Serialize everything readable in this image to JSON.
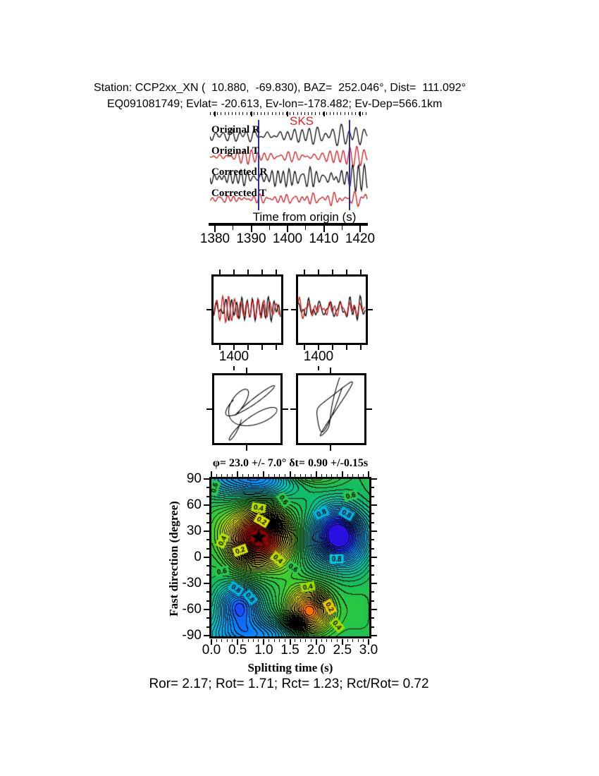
{
  "header": {
    "line1": "Station: CCP2xx_XN (  10.880,  -69.830), BAZ=  252.046°, Dist=  111.092°",
    "line2": "EQ091081749; Evlat= -20.613, Ev-lon=-178.482; Ev-Dep=566.1km"
  },
  "colors": {
    "pick_line": "#2d2db4",
    "phase_label": "#dd2222",
    "trace_black": "#000000",
    "trace_red": "#cc1111"
  },
  "waveform_section": {
    "phase_label": "SKS",
    "axis_label": "Time from origin (s)",
    "tick_times": [
      1380,
      1390,
      1400,
      1410,
      1420
    ],
    "tick_labels": [
      "1380",
      "1390",
      "1400",
      "1410",
      "1420"
    ],
    "pick_times_s": [
      1392,
      1417
    ],
    "traces": [
      {
        "label": "Original R",
        "color": "#000000",
        "seed": 11,
        "amp": 12
      },
      {
        "label": "Original T",
        "color": "#cc1111",
        "seed": 47,
        "amp": 9
      },
      {
        "label": "Corrected R",
        "color": "#000000",
        "seed": 83,
        "amp": 13
      },
      {
        "label": "Corrected T",
        "color": "#cc1111",
        "seed": 29,
        "amp": 7
      }
    ]
  },
  "zoom_section": {
    "tick_label": "1400",
    "panels": [
      {
        "name": "original-window",
        "black_seed": 5,
        "red_seed": 61
      },
      {
        "name": "corrected-window",
        "black_seed": 19,
        "red_seed": 73
      }
    ]
  },
  "particle_motion_section": {
    "panels": [
      {
        "name": "uncorrected-particle-motion",
        "seed": 101,
        "style": "elliptical"
      },
      {
        "name": "corrected-particle-motion",
        "seed": 202,
        "style": "linear",
        "angle_deg": 62
      }
    ]
  },
  "chart_data": {
    "type": "heatmap",
    "title": "φ= 23.0 +/- 7.0° δt= 0.90 +/-0.15s",
    "xlabel": "Splitting time (s)",
    "ylabel": "Fast direction (degree)",
    "xlim": [
      0,
      3
    ],
    "ylim": [
      -90,
      90
    ],
    "xtick_labels": [
      "0.0",
      "0.5",
      "1.0",
      "1.5",
      "2.0",
      "2.5",
      "3.0"
    ],
    "ytick_labels": [
      "90",
      "60",
      "30",
      "0",
      "-30",
      "-60",
      "-90"
    ],
    "x_minor_step": 0.1,
    "y_minor_step": 10,
    "grid": false,
    "best_fit": {
      "phi_deg": 23.0,
      "phi_err_deg": 7.0,
      "dt_s": 0.9,
      "dt_err_s": 0.15
    },
    "star": {
      "t": 0.9,
      "phi": 23
    },
    "contour_interval": 0.02,
    "field": {
      "base": 0.58,
      "ripple_amp": 0.012,
      "blobs": [
        {
          "t": 0.9,
          "p": 23,
          "st": 0.55,
          "sp": 30,
          "a": -0.62
        },
        {
          "t": 1.85,
          "p": -62,
          "st": 0.42,
          "sp": 26,
          "a": -0.4
        },
        {
          "t": 2.42,
          "p": 25,
          "st": 0.55,
          "sp": 34,
          "a": 0.46
        },
        {
          "t": 0.52,
          "p": -54,
          "st": 0.45,
          "sp": 25,
          "a": 0.3
        },
        {
          "t": 0.8,
          "p": 90,
          "st": 0.95,
          "sp": 22,
          "a": 0.26
        }
      ]
    },
    "colormap": [
      [
        0.0,
        "#8b0000"
      ],
      [
        0.06,
        "#cd0000"
      ],
      [
        0.14,
        "#ff4500"
      ],
      [
        0.22,
        "#ff8c00"
      ],
      [
        0.3,
        "#ffd700"
      ],
      [
        0.38,
        "#ffff00"
      ],
      [
        0.46,
        "#aadd00"
      ],
      [
        0.54,
        "#33cc33"
      ],
      [
        0.62,
        "#11bb66"
      ],
      [
        0.7,
        "#00ccbb"
      ],
      [
        0.78,
        "#00aaee"
      ],
      [
        0.86,
        "#0090ff"
      ],
      [
        0.93,
        "#2233ff"
      ],
      [
        1.0,
        "#2a10e0"
      ]
    ],
    "contour_labels": [
      {
        "text": "0.6",
        "t": 0.06,
        "p": 80,
        "rot": 75,
        "bg": "#2ec84e"
      },
      {
        "text": "0.6",
        "t": 1.38,
        "p": 66,
        "rot": -55,
        "bg": "#2ec84e"
      },
      {
        "text": "0.4",
        "t": 0.9,
        "p": 57,
        "rot": -10,
        "bg": "#b4e000"
      },
      {
        "text": "0.2",
        "t": 0.96,
        "p": 42,
        "rot": -30,
        "bg": "#d8e400"
      },
      {
        "text": "0.4",
        "t": 0.21,
        "p": 19,
        "rot": 65,
        "bg": "#b4e000"
      },
      {
        "text": "0.2",
        "t": 0.55,
        "p": 8,
        "rot": 20,
        "bg": "#d8e400"
      },
      {
        "text": "0.4",
        "t": 1.27,
        "p": -2,
        "rot": -40,
        "bg": "#b4e000"
      },
      {
        "text": "0.6",
        "t": 1.56,
        "p": -12,
        "rot": -35,
        "bg": "#2ec84e"
      },
      {
        "text": "0.6",
        "t": 0.2,
        "p": -16,
        "rot": 10,
        "bg": "#2ec84e"
      },
      {
        "text": "0.8",
        "t": 2.1,
        "p": 51,
        "rot": 25,
        "bg": "#00b4e6"
      },
      {
        "text": "0.8",
        "t": 2.58,
        "p": 50,
        "rot": -30,
        "bg": "#00b4e6"
      },
      {
        "text": "0.6",
        "t": 2.66,
        "p": 71,
        "rot": 15,
        "bg": "#2ec84e"
      },
      {
        "text": "0.8",
        "t": 2.39,
        "p": -2,
        "rot": 0,
        "bg": "#00c8e6"
      },
      {
        "text": "0.8",
        "t": 0.47,
        "p": -36,
        "rot": -35,
        "bg": "#00b4e6"
      },
      {
        "text": "0.8",
        "t": 0.74,
        "p": -46,
        "rot": -50,
        "bg": "#00b4e6"
      },
      {
        "text": "0.4",
        "t": 1.84,
        "p": -34,
        "rot": 10,
        "bg": "#a0dc00"
      },
      {
        "text": "0.2",
        "t": 2.26,
        "p": -57,
        "rot": -60,
        "bg": "#f0c800"
      },
      {
        "text": "0.4",
        "t": 2.4,
        "p": -78,
        "rot": -50,
        "bg": "#a0dc00"
      }
    ]
  },
  "footer_stats": "Ror= 2.17; Rot= 1.71; Rct= 1.23; Rct/Rot= 0.72"
}
